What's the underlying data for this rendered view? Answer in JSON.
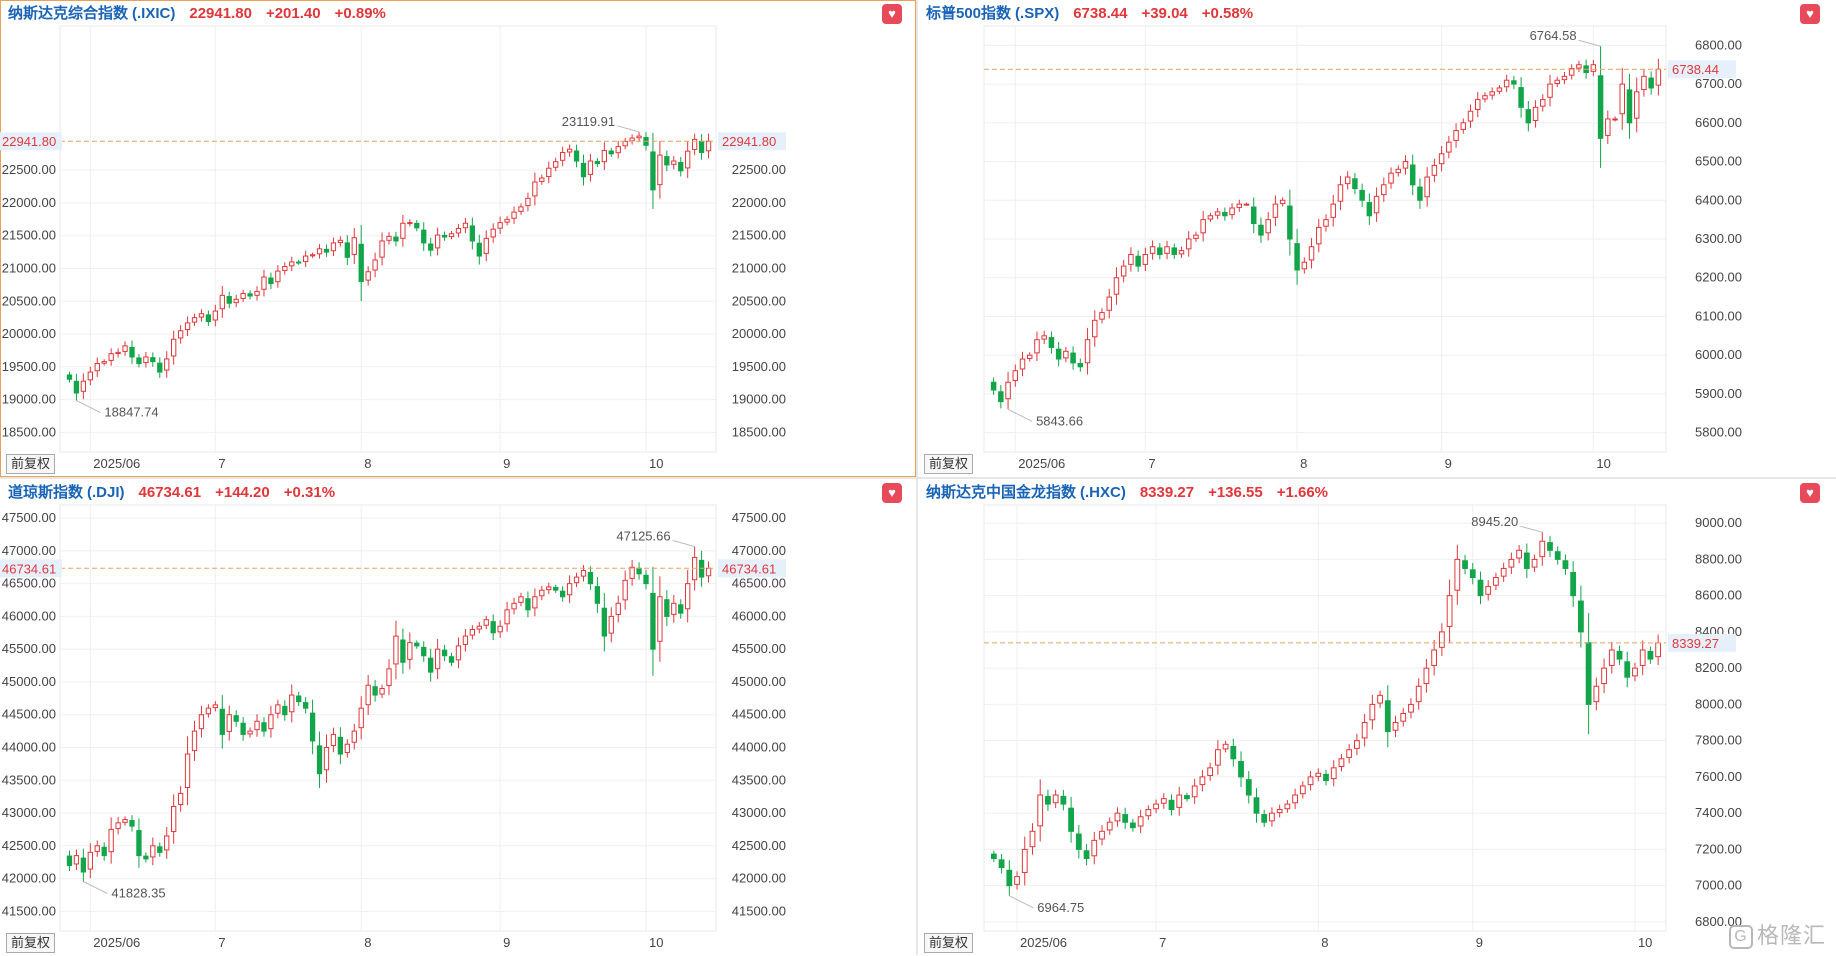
{
  "panels": [
    {
      "name": "纳斯达克综合指数",
      "code": "(.IXIC)",
      "price": "22941.80",
      "change": "+201.40",
      "pct": "+0.89%",
      "adj_label": "前复权",
      "selected": true,
      "y_labels_both_sides": true,
      "chart_data": {
        "type": "candlestick",
        "y_ticks": [
          "18500.00",
          "19000.00",
          "19500.00",
          "20000.00",
          "20500.00",
          "21000.00",
          "21500.00",
          "22000.00",
          "22500.00"
        ],
        "ylim": [
          18200,
          24700
        ],
        "x_labels": [
          {
            "i": 3,
            "label": "2025/06"
          },
          {
            "i": 21,
            "label": "7"
          },
          {
            "i": 42,
            "label": "8"
          },
          {
            "i": 62,
            "label": "9"
          },
          {
            "i": 83,
            "label": "10"
          }
        ],
        "current": "22941.80",
        "high_label": "23119.91",
        "low_label": "18847.74",
        "close": [
          19310,
          19100,
          19280,
          19420,
          19550,
          19580,
          19700,
          19720,
          19820,
          19650,
          19550,
          19650,
          19580,
          19420,
          19620,
          19920,
          20050,
          20170,
          20250,
          20310,
          20190,
          20350,
          20590,
          20470,
          20530,
          20620,
          20580,
          20650,
          20870,
          20770,
          20960,
          21030,
          21100,
          21090,
          21190,
          21210,
          21300,
          21250,
          21390,
          21430,
          21170,
          21470,
          20800,
          20950,
          21130,
          21420,
          21490,
          21420,
          21690,
          21700,
          21620,
          21390,
          21280,
          21510,
          21480,
          21530,
          21610,
          21690,
          21420,
          21190,
          21460,
          21600,
          21700,
          21750,
          21860,
          21940,
          22070,
          22320,
          22380,
          22530,
          22630,
          22770,
          22820,
          22640,
          22400,
          22640,
          22600,
          22800,
          22750,
          22860,
          22940,
          22990,
          23020,
          22880,
          22200,
          22730,
          22580,
          22640,
          22490,
          22790,
          22970,
          22770,
          22941.8
        ]
      }
    },
    {
      "name": "标普500指数",
      "code": "(.SPX)",
      "price": "6738.44",
      "change": "+39.04",
      "pct": "+0.58%",
      "adj_label": "前复权",
      "selected": false,
      "y_labels_both_sides": false,
      "chart_data": {
        "type": "candlestick",
        "y_ticks": [
          "5800.00",
          "5900.00",
          "6000.00",
          "6100.00",
          "6200.00",
          "6300.00",
          "6400.00",
          "6500.00",
          "6600.00",
          "6700.00",
          "6800.00"
        ],
        "ylim": [
          5750,
          6850
        ],
        "x_labels": [
          {
            "i": 3,
            "label": "2025/06"
          },
          {
            "i": 21,
            "label": "7"
          },
          {
            "i": 42,
            "label": "8"
          },
          {
            "i": 62,
            "label": "9"
          },
          {
            "i": 83,
            "label": "10"
          }
        ],
        "current": "6738.44",
        "high_label": "6764.58",
        "low_label": "5843.66",
        "close": [
          5910,
          5880,
          5930,
          5960,
          5990,
          6000,
          6040,
          6050,
          6020,
          5990,
          6010,
          5980,
          5970,
          6040,
          6090,
          6110,
          6150,
          6200,
          6230,
          6260,
          6230,
          6260,
          6280,
          6260,
          6280,
          6260,
          6270,
          6300,
          6310,
          6350,
          6360,
          6370,
          6360,
          6380,
          6390,
          6390,
          6340,
          6310,
          6350,
          6390,
          6400,
          6300,
          6220,
          6240,
          6280,
          6330,
          6350,
          6390,
          6440,
          6460,
          6430,
          6400,
          6360,
          6410,
          6440,
          6470,
          6480,
          6500,
          6440,
          6400,
          6460,
          6490,
          6520,
          6550,
          6580,
          6600,
          6630,
          6660,
          6670,
          6680,
          6690,
          6710,
          6700,
          6640,
          6600,
          6640,
          6660,
          6700,
          6710,
          6720,
          6740,
          6750,
          6730,
          6750,
          6560,
          6610,
          6610,
          6700,
          6600,
          6680,
          6720,
          6690,
          6738.44
        ]
      }
    },
    {
      "name": "道琼斯指数",
      "code": "(.DJI)",
      "price": "46734.61",
      "change": "+144.20",
      "pct": "+0.31%",
      "adj_label": "前复权",
      "selected": false,
      "y_labels_both_sides": true,
      "chart_data": {
        "type": "candlestick",
        "y_ticks": [
          "41500.00",
          "42000.00",
          "42500.00",
          "43000.00",
          "43500.00",
          "44000.00",
          "44500.00",
          "45000.00",
          "45500.00",
          "46000.00",
          "46500.00",
          "47000.00",
          "47500.00"
        ],
        "ylim": [
          41200,
          47700
        ],
        "x_labels": [
          {
            "i": 3,
            "label": "2025/06"
          },
          {
            "i": 21,
            "label": "7"
          },
          {
            "i": 42,
            "label": "8"
          },
          {
            "i": 62,
            "label": "9"
          },
          {
            "i": 83,
            "label": "10"
          }
        ],
        "current": "46734.61",
        "high_label": "47125.66",
        "low_label": "41828.35",
        "close": [
          42200,
          42350,
          42100,
          42400,
          42500,
          42350,
          42750,
          42850,
          42900,
          42800,
          42350,
          42300,
          42500,
          42400,
          42650,
          43100,
          43300,
          43900,
          44250,
          44500,
          44600,
          44650,
          44200,
          44500,
          44400,
          44200,
          44250,
          44400,
          44250,
          44500,
          44650,
          44500,
          44800,
          44700,
          44600,
          44100,
          43600,
          44000,
          44200,
          43900,
          44050,
          44250,
          44600,
          44950,
          44800,
          44900,
          45200,
          45700,
          45300,
          45600,
          45550,
          45400,
          45150,
          45500,
          45400,
          45300,
          45550,
          45700,
          45800,
          45850,
          45950,
          45750,
          45850,
          46100,
          46200,
          46300,
          46100,
          46300,
          46400,
          46450,
          46400,
          46300,
          46500,
          46600,
          46700,
          46500,
          46200,
          45700,
          46000,
          46200,
          46550,
          46750,
          46650,
          46500,
          45500,
          46300,
          46000,
          46200,
          46050,
          46500,
          46900,
          46600,
          46734.61
        ]
      }
    },
    {
      "name": "纳斯达克中国金龙指数",
      "code": "(.HXC)",
      "price": "8339.27",
      "change": "+136.55",
      "pct": "+1.66%",
      "adj_label": "前复权",
      "selected": false,
      "y_labels_both_sides": false,
      "chart_data": {
        "type": "candlestick",
        "y_ticks": [
          "6800.00",
          "7000.00",
          "7200.00",
          "7400.00",
          "7600.00",
          "7800.00",
          "8000.00",
          "8200.00",
          "8400.00",
          "8600.00",
          "8800.00",
          "9000.00"
        ],
        "ylim": [
          6750,
          9100
        ],
        "x_labels": [
          {
            "i": 3,
            "label": "2025/06"
          },
          {
            "i": 21,
            "label": "7"
          },
          {
            "i": 42,
            "label": "8"
          },
          {
            "i": 62,
            "label": "9"
          },
          {
            "i": 83,
            "label": "10"
          }
        ],
        "current": "8339.27",
        "high_label": "8945.20",
        "low_label": "6964.75",
        "close": [
          7150,
          7100,
          7000,
          7050,
          7200,
          7300,
          7500,
          7450,
          7500,
          7450,
          7300,
          7200,
          7150,
          7250,
          7300,
          7350,
          7400,
          7350,
          7320,
          7380,
          7420,
          7450,
          7480,
          7420,
          7500,
          7480,
          7550,
          7600,
          7650,
          7750,
          7780,
          7700,
          7600,
          7500,
          7400,
          7350,
          7400,
          7420,
          7450,
          7500,
          7550,
          7600,
          7620,
          7580,
          7650,
          7700,
          7750,
          7800,
          7900,
          8000,
          8050,
          7850,
          7900,
          7950,
          8000,
          8100,
          8200,
          8300,
          8400,
          8600,
          8800,
          8750,
          8700,
          8600,
          8650,
          8700,
          8750,
          8800,
          8850,
          8750,
          8800,
          8900,
          8850,
          8800,
          8750,
          8600,
          8400,
          8000,
          8100,
          8200,
          8300,
          8250,
          8150,
          8200,
          8300,
          8250,
          8339.27
        ]
      }
    }
  ],
  "watermark": "格隆汇"
}
